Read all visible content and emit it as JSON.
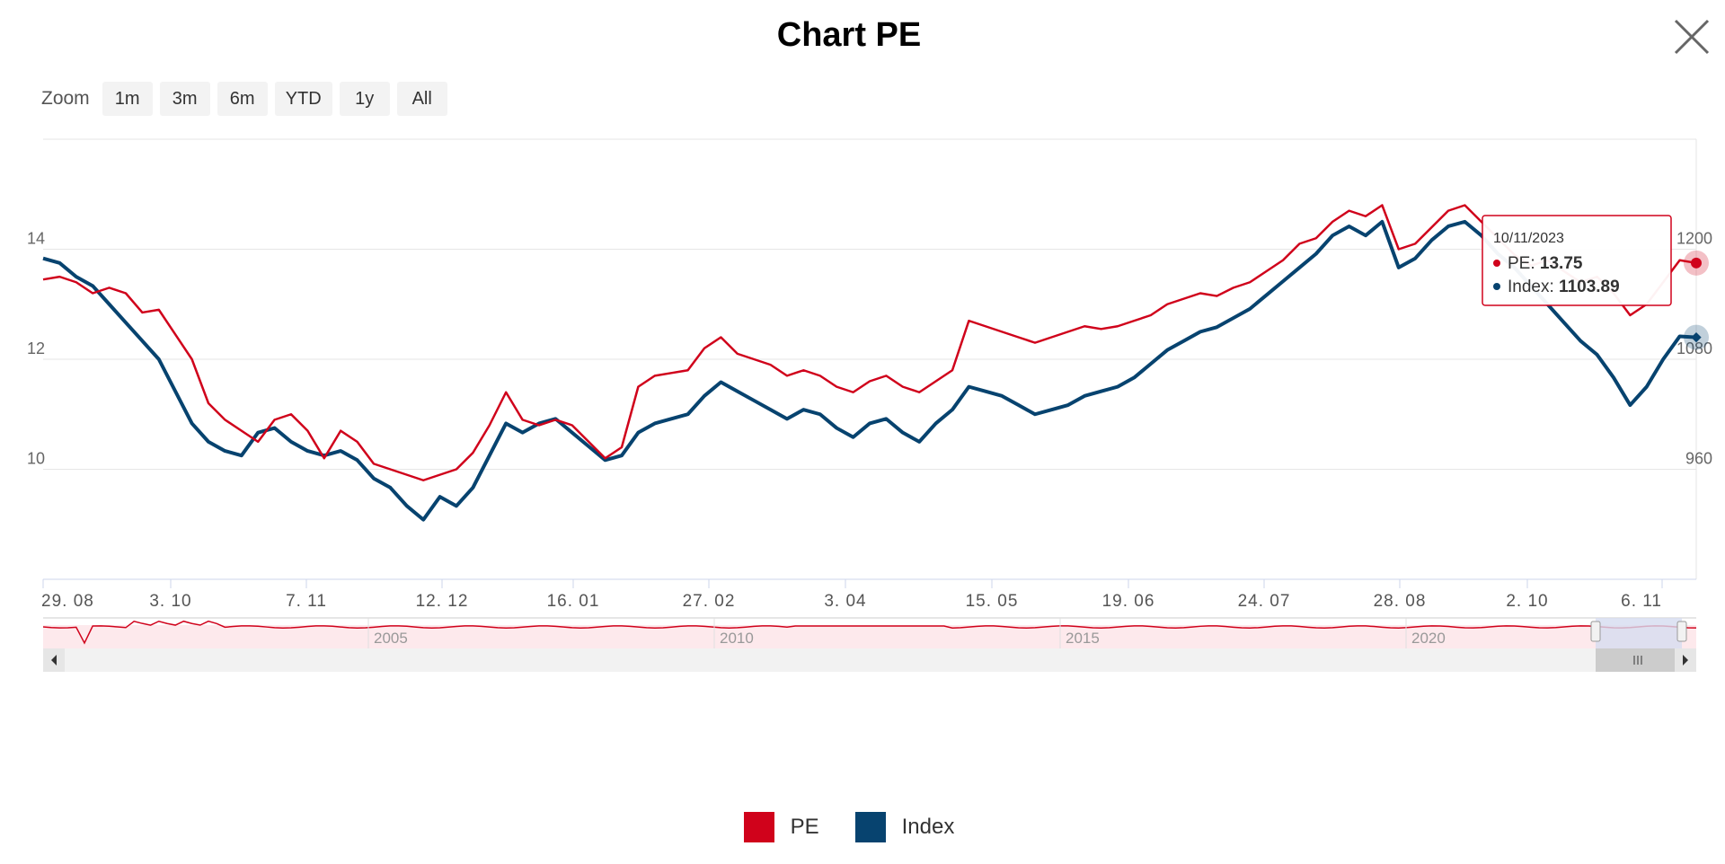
{
  "title": "Chart PE",
  "zoom": {
    "label": "Zoom",
    "buttons": [
      "1m",
      "3m",
      "6m",
      "YTD",
      "1y",
      "All"
    ]
  },
  "colors": {
    "pe": "#d0021b",
    "index": "#07436f",
    "grid": "#e6e6e6",
    "navigator_fill": "#fde9ec",
    "navigator_selection": "#d6dcf0"
  },
  "chart_data": {
    "type": "line",
    "title": "Chart PE",
    "x_ticks": [
      "29. 08",
      "3. 10",
      "7. 11",
      "12. 12",
      "16. 01",
      "27. 02",
      "3. 04",
      "15. 05",
      "19. 06",
      "24. 07",
      "28. 08",
      "2. 10",
      "6. 11"
    ],
    "y_left": {
      "ticks": [
        10,
        12,
        14
      ],
      "range": [
        8,
        16
      ]
    },
    "y_right": {
      "ticks": [
        960,
        1080,
        1200
      ],
      "range": [
        840,
        1320
      ]
    },
    "grid": true,
    "legend_position": "bottom-center",
    "series": [
      {
        "name": "PE",
        "axis": "left",
        "values": [
          13.45,
          13.5,
          13.4,
          13.2,
          13.3,
          13.2,
          12.85,
          12.9,
          12.45,
          12.0,
          11.2,
          10.9,
          10.7,
          10.5,
          10.9,
          11.0,
          10.7,
          10.2,
          10.7,
          10.5,
          10.1,
          10.0,
          9.9,
          9.8,
          9.9,
          10.0,
          10.3,
          10.8,
          11.4,
          10.9,
          10.8,
          10.9,
          10.8,
          10.5,
          10.2,
          10.4,
          11.5,
          11.7,
          11.75,
          11.8,
          12.2,
          12.4,
          12.1,
          12.0,
          11.9,
          11.7,
          11.8,
          11.7,
          11.5,
          11.4,
          11.6,
          11.7,
          11.5,
          11.4,
          11.6,
          11.8,
          12.7,
          12.6,
          12.5,
          12.4,
          12.3,
          12.4,
          12.5,
          12.6,
          12.55,
          12.6,
          12.7,
          12.8,
          13.0,
          13.1,
          13.2,
          13.15,
          13.3,
          13.4,
          13.6,
          13.8,
          14.1,
          14.2,
          14.5,
          14.7,
          14.6,
          14.8,
          14.0,
          14.1,
          14.4,
          14.7,
          14.8,
          14.5,
          14.2,
          13.9,
          13.7,
          13.8,
          13.6,
          13.4,
          13.5,
          13.2,
          12.8,
          13.0,
          13.4,
          13.8,
          13.75
        ]
      },
      {
        "name": "Index",
        "axis": "right",
        "values": [
          1190,
          1185,
          1170,
          1160,
          1140,
          1120,
          1100,
          1080,
          1045,
          1010,
          990,
          980,
          975,
          1000,
          1005,
          990,
          980,
          975,
          980,
          970,
          950,
          940,
          920,
          905,
          930,
          920,
          940,
          975,
          1010,
          1000,
          1010,
          1015,
          1000,
          985,
          970,
          975,
          1000,
          1010,
          1015,
          1020,
          1040,
          1055,
          1045,
          1035,
          1025,
          1015,
          1025,
          1020,
          1005,
          995,
          1010,
          1015,
          1000,
          990,
          1010,
          1025,
          1050,
          1045,
          1040,
          1030,
          1020,
          1025,
          1030,
          1040,
          1045,
          1050,
          1060,
          1075,
          1090,
          1100,
          1110,
          1115,
          1125,
          1135,
          1150,
          1165,
          1180,
          1195,
          1215,
          1225,
          1215,
          1230,
          1180,
          1190,
          1210,
          1225,
          1230,
          1215,
          1195,
          1180,
          1160,
          1140,
          1120,
          1100,
          1085,
          1060,
          1030,
          1050,
          1080,
          1105,
          1103.89
        ]
      }
    ],
    "tooltip": {
      "date": "10/11/2023",
      "pe_label": "PE:",
      "pe_value": "13.75",
      "index_label": "Index:",
      "index_value": "1103.89"
    },
    "navigator": {
      "year_labels": [
        "2005",
        "2010",
        "2015",
        "2020"
      ]
    }
  },
  "legend": [
    {
      "label": "PE",
      "color": "#d0021b"
    },
    {
      "label": "Index",
      "color": "#07436f"
    }
  ]
}
